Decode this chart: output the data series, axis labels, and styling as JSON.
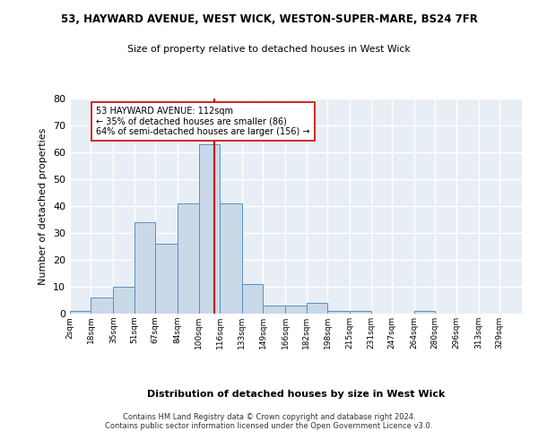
{
  "title1": "53, HAYWARD AVENUE, WEST WICK, WESTON-SUPER-MARE, BS24 7FR",
  "title2": "Size of property relative to detached houses in West Wick",
  "xlabel": "Distribution of detached houses by size in West Wick",
  "ylabel": "Number of detached properties",
  "bar_values": [
    1,
    6,
    10,
    34,
    26,
    41,
    63,
    41,
    11,
    3,
    3,
    4,
    1,
    1,
    0,
    0,
    1
  ],
  "bar_color": "#c9d9e8",
  "bar_edge_color": "#5a8fc2",
  "property_value": 112,
  "vline_color": "#cc0000",
  "annotation_text": "53 HAYWARD AVENUE: 112sqm\n← 35% of detached houses are smaller (86)\n64% of semi-detached houses are larger (156) →",
  "annotation_box_color": "#ffffff",
  "annotation_box_edge": "#cc0000",
  "ylim": [
    0,
    80
  ],
  "yticks": [
    0,
    10,
    20,
    30,
    40,
    50,
    60,
    70,
    80
  ],
  "background_color": "#e8eef5",
  "footer_text": "Contains HM Land Registry data © Crown copyright and database right 2024.\nContains public sector information licensed under the Open Government Licence v3.0.",
  "grid_color": "#ffffff",
  "tick_labels": [
    "2sqm",
    "18sqm",
    "35sqm",
    "51sqm",
    "67sqm",
    "84sqm",
    "100sqm",
    "116sqm",
    "133sqm",
    "149sqm",
    "166sqm",
    "182sqm",
    "198sqm",
    "215sqm",
    "231sqm",
    "247sqm",
    "264sqm",
    "280sqm",
    "296sqm",
    "313sqm",
    "329sqm"
  ],
  "bin_edges": [
    2,
    18,
    35,
    51,
    67,
    84,
    100,
    116,
    133,
    149,
    166,
    182,
    198,
    215,
    231,
    247,
    264,
    280,
    296,
    313,
    329
  ],
  "xlim_left": 2,
  "xlim_right": 346
}
